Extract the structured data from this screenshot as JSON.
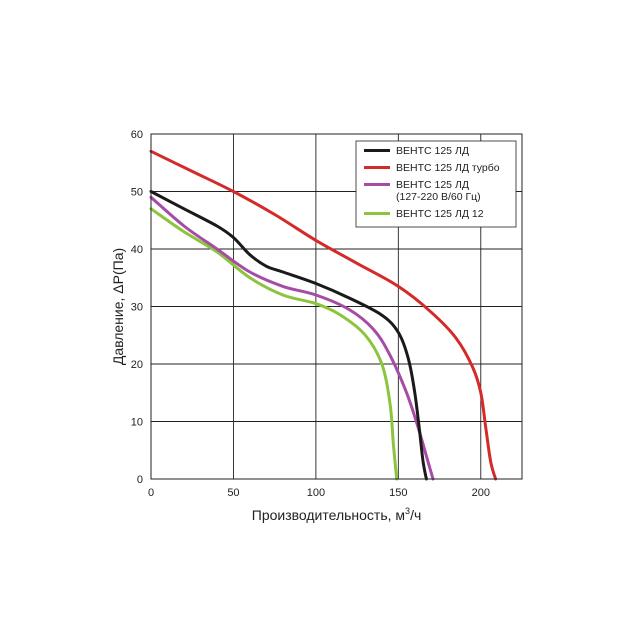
{
  "chart_data": {
    "type": "line",
    "title": "",
    "xlabel": "Производительность, м",
    "xlabel_sup": "3",
    "xlabel_suffix": "/ч",
    "ylabel": "Давление, ΔP(Па)",
    "xlim": [
      0,
      225
    ],
    "ylim": [
      0,
      60
    ],
    "xticks": [
      0,
      50,
      100,
      150,
      200
    ],
    "yticks": [
      0,
      10,
      20,
      30,
      40,
      50,
      60
    ],
    "grid": true,
    "legend_position": "top-right",
    "series": [
      {
        "name": "ВЕНТС 125 ЛД",
        "name_lines": [
          "ВЕНТС 125 ЛД"
        ],
        "color": "#1a1a1a",
        "points": [
          [
            0,
            50
          ],
          [
            20,
            47
          ],
          [
            40,
            44
          ],
          [
            50,
            42
          ],
          [
            60,
            39
          ],
          [
            70,
            37
          ],
          [
            80,
            36
          ],
          [
            100,
            34
          ],
          [
            120,
            31.5
          ],
          [
            140,
            28.5
          ],
          [
            150,
            25.5
          ],
          [
            156,
            21
          ],
          [
            160,
            15
          ],
          [
            163,
            8
          ],
          [
            165,
            3
          ],
          [
            167,
            0
          ]
        ]
      },
      {
        "name": "ВЕНТС 125 ЛД турбо",
        "name_lines": [
          "ВЕНТС 125 ЛД турбо"
        ],
        "color": "#d42a2a",
        "points": [
          [
            0,
            57
          ],
          [
            25,
            53.5
          ],
          [
            50,
            50
          ],
          [
            75,
            46
          ],
          [
            100,
            41.5
          ],
          [
            125,
            37.5
          ],
          [
            150,
            33.5
          ],
          [
            170,
            29
          ],
          [
            185,
            24.5
          ],
          [
            195,
            19.5
          ],
          [
            200,
            15
          ],
          [
            203,
            9
          ],
          [
            206,
            3
          ],
          [
            209,
            0
          ]
        ]
      },
      {
        "name": "ВЕНТС 125 ЛД (127-220 В/60 Гц)",
        "name_lines": [
          "ВЕНТС 125 ЛД",
          "(127-220 В/60 Гц)"
        ],
        "color": "#a64ca6",
        "points": [
          [
            0,
            49
          ],
          [
            20,
            44
          ],
          [
            40,
            40
          ],
          [
            60,
            36
          ],
          [
            80,
            33.5
          ],
          [
            100,
            32
          ],
          [
            120,
            29.5
          ],
          [
            135,
            26
          ],
          [
            145,
            21.5
          ],
          [
            155,
            15
          ],
          [
            162,
            9
          ],
          [
            167,
            4
          ],
          [
            171,
            0
          ]
        ]
      },
      {
        "name": "ВЕНТС 125 ЛД 12",
        "name_lines": [
          "ВЕНТС 125 ЛД 12"
        ],
        "color": "#8cc43e",
        "points": [
          [
            0,
            47
          ],
          [
            20,
            43
          ],
          [
            40,
            39.5
          ],
          [
            60,
            35
          ],
          [
            80,
            32
          ],
          [
            100,
            30.5
          ],
          [
            115,
            28.5
          ],
          [
            130,
            25
          ],
          [
            140,
            20
          ],
          [
            145,
            13
          ],
          [
            147,
            6
          ],
          [
            149,
            0
          ]
        ]
      }
    ]
  }
}
